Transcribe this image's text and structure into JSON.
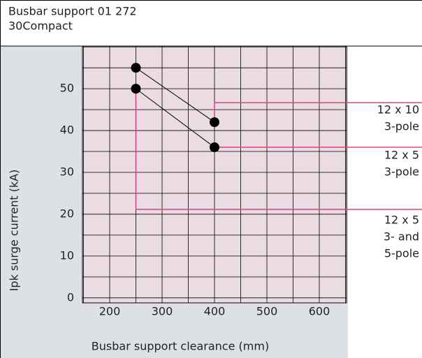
{
  "header": {
    "title": "Busbar support 01 272",
    "subtitle": "30Compact"
  },
  "chart_data": {
    "type": "line",
    "x_label": "Busbar support clearance (mm)",
    "y_label": "Ipk surge current (kA)",
    "series": [
      {
        "name": "12 x 10 3-pole",
        "color": "#000000",
        "x": [
          250,
          400
        ],
        "values": [
          55,
          42
        ]
      },
      {
        "name": "12 x 5 3-pole",
        "color": "#000000",
        "x": [
          250,
          400
        ],
        "values": [
          50,
          36
        ]
      }
    ],
    "annotations": [
      {
        "lines": [
          "12 x 10",
          "3-pole"
        ]
      },
      {
        "lines": [
          "12 x 5",
          "3-pole"
        ]
      },
      {
        "lines": [
          "12 x 5",
          "3- and",
          "5-pole"
        ]
      }
    ],
    "xlim": [
      148,
      652
    ],
    "ylim": [
      -1.2,
      60.2
    ],
    "xticks": [
      200,
      300,
      400,
      500,
      600
    ],
    "yticks": [
      0,
      10,
      20,
      30,
      40,
      50
    ],
    "xgrid": [
      150,
      200,
      250,
      300,
      350,
      400,
      450,
      500,
      550,
      600,
      650
    ],
    "ygrid": [
      0,
      5,
      10,
      15,
      20,
      25,
      30,
      35,
      40,
      45,
      50,
      55,
      60
    ],
    "grid": true,
    "callout_color": "#e0407f"
  }
}
